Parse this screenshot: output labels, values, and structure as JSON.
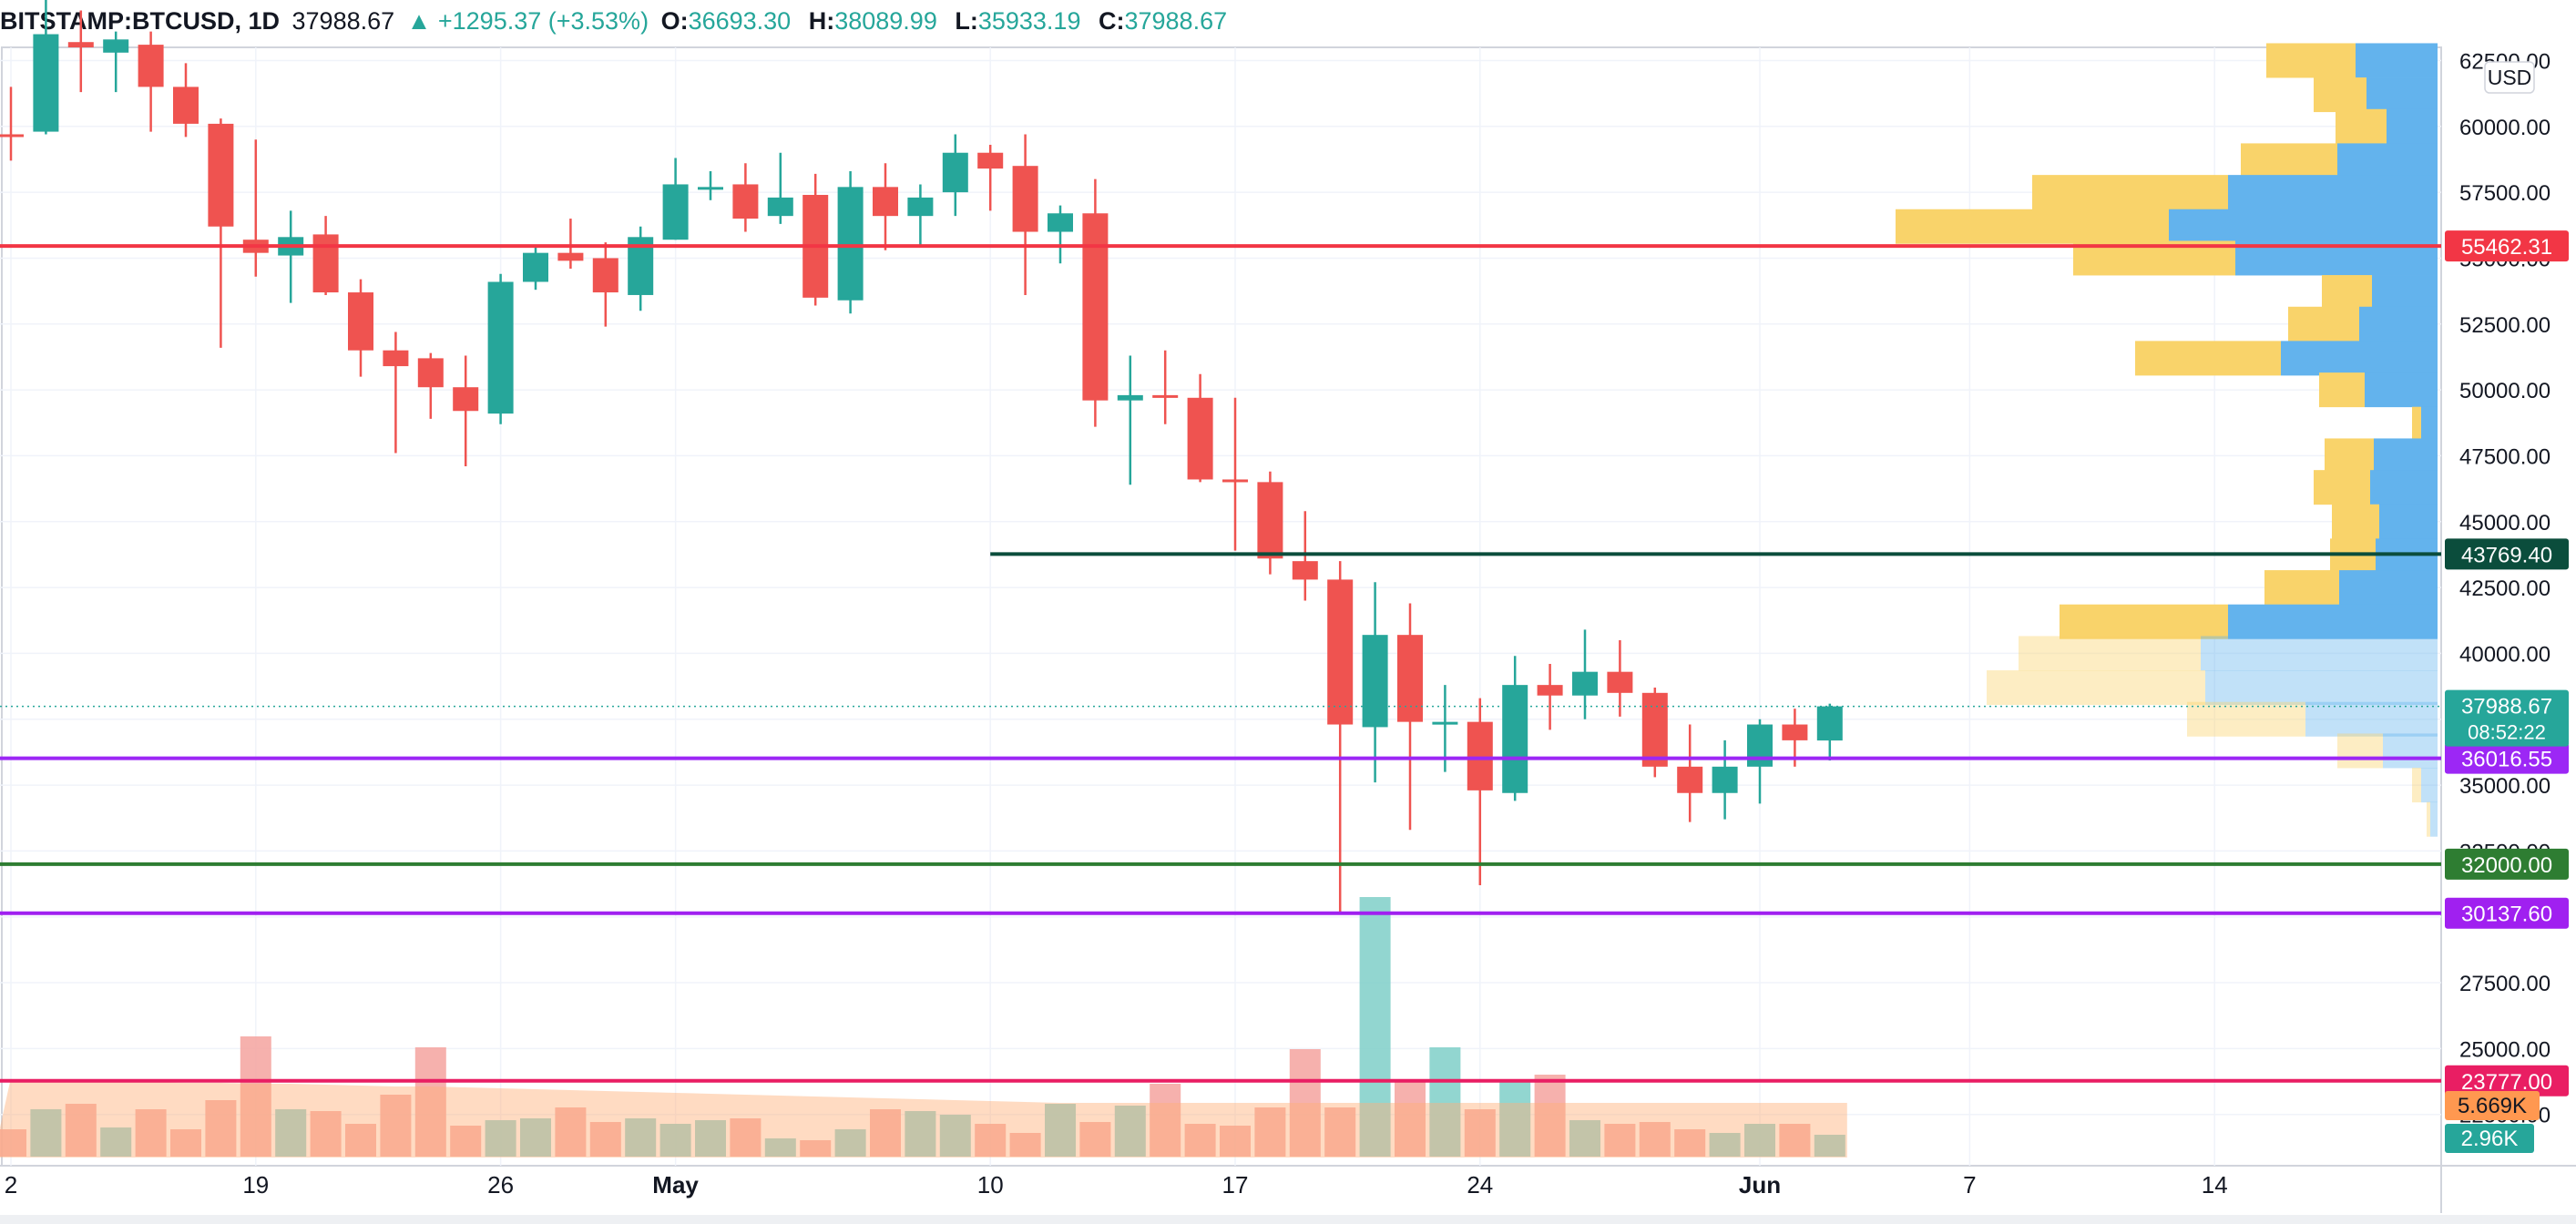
{
  "header": {
    "symbol": "BITSTAMP:BTCUSD, 1D",
    "last": "37988.67",
    "change": "▲ +1295.37 (+3.53%)",
    "o_label": "O:",
    "o_value": "36693.30",
    "h_label": "H:",
    "h_value": "38089.99",
    "l_label": "L:",
    "l_value": "35933.19",
    "c_label": "C:",
    "c_value": "37988.67"
  },
  "currency_label": "USD",
  "colors": {
    "up": "#26a69a",
    "down": "#ef5350",
    "vol_up": "#7fcfc8",
    "vol_down": "#f5a39f",
    "vp_up": "#63b3ed",
    "vp_down": "#f9d36a",
    "grid": "#f0f3fa",
    "text": "#131722"
  },
  "chart_data": {
    "type": "candlestick",
    "symbol": "BITSTAMP:BTCUSD",
    "interval": "1D",
    "ylim": [
      20900,
      63000
    ],
    "price_ticks": [
      "62500.00",
      "60000.00",
      "57500.00",
      "55000.00",
      "52500.00",
      "50000.00",
      "47500.00",
      "45000.00",
      "42500.00",
      "40000.00",
      "37500.00",
      "35000.00",
      "32500.00",
      "30000.00",
      "27500.00",
      "25000.00",
      "22500.00"
    ],
    "x_ticks": [
      {
        "label": "2",
        "day": 0
      },
      {
        "label": "19",
        "day": 7
      },
      {
        "label": "26",
        "day": 14
      },
      {
        "label": "May",
        "day": 19
      },
      {
        "label": "10",
        "day": 28
      },
      {
        "label": "17",
        "day": 35
      },
      {
        "label": "24",
        "day": 42
      },
      {
        "label": "Jun",
        "day": 50
      },
      {
        "label": "7",
        "day": 56
      },
      {
        "label": "14",
        "day": 63
      }
    ],
    "candles": [
      [
        0,
        59700,
        59600,
        61500,
        58700
      ],
      [
        1,
        59800,
        63500,
        64900,
        59700
      ],
      [
        2,
        63200,
        63000,
        64400,
        61300
      ],
      [
        3,
        62800,
        63300,
        63600,
        61300
      ],
      [
        4,
        63100,
        61500,
        63600,
        59800
      ],
      [
        5,
        61500,
        60100,
        62400,
        59600
      ],
      [
        6,
        60100,
        56200,
        60300,
        51600
      ],
      [
        7,
        55700,
        55200,
        59500,
        54300
      ],
      [
        8,
        55100,
        55800,
        56800,
        53300
      ],
      [
        9,
        55900,
        53700,
        56600,
        53600
      ],
      [
        10,
        53700,
        51500,
        54200,
        50500
      ],
      [
        11,
        51500,
        50900,
        52200,
        47600
      ],
      [
        12,
        51200,
        50100,
        51400,
        48900
      ],
      [
        13,
        50100,
        49200,
        51300,
        47100
      ],
      [
        14,
        49100,
        54100,
        54400,
        48700
      ],
      [
        15,
        54100,
        55200,
        55500,
        53800
      ],
      [
        16,
        55200,
        54900,
        56500,
        54600
      ],
      [
        17,
        55000,
        53700,
        55600,
        52400
      ],
      [
        18,
        53600,
        55800,
        56200,
        53000
      ],
      [
        19,
        55700,
        57800,
        58800,
        55700
      ],
      [
        20,
        57700,
        57700,
        58300,
        57200
      ],
      [
        21,
        57800,
        56500,
        58600,
        56000
      ],
      [
        22,
        56600,
        57300,
        59000,
        56300
      ],
      [
        23,
        57400,
        53500,
        58200,
        53200
      ],
      [
        24,
        53400,
        57700,
        58300,
        52900
      ],
      [
        25,
        57700,
        56600,
        58600,
        55300
      ],
      [
        26,
        56600,
        57300,
        57800,
        55400
      ],
      [
        27,
        57500,
        59000,
        59700,
        56600
      ],
      [
        28,
        59000,
        58400,
        59300,
        56800
      ],
      [
        29,
        58500,
        56000,
        59700,
        53600
      ],
      [
        30,
        56000,
        56700,
        57000,
        54800
      ],
      [
        31,
        56700,
        49600,
        58000,
        48600
      ],
      [
        32,
        49600,
        49800,
        51300,
        46400
      ],
      [
        33,
        49800,
        49700,
        51500,
        48700
      ],
      [
        34,
        49700,
        46600,
        50600,
        46500
      ],
      [
        35,
        46600,
        46500,
        49700,
        43900
      ],
      [
        36,
        46500,
        43600,
        46900,
        43000
      ],
      [
        37,
        43500,
        42800,
        45400,
        42000
      ],
      [
        38,
        42800,
        37300,
        43500,
        30100
      ],
      [
        39,
        37200,
        40700,
        42700,
        35100
      ],
      [
        40,
        40700,
        37400,
        41900,
        33300
      ],
      [
        41,
        37400,
        37400,
        38800,
        35500
      ],
      [
        42,
        37400,
        34800,
        38300,
        31200
      ],
      [
        43,
        34700,
        38800,
        39900,
        34400
      ],
      [
        44,
        38800,
        38400,
        39600,
        37100
      ],
      [
        45,
        38400,
        39300,
        40900,
        37500
      ],
      [
        46,
        39300,
        38500,
        40500,
        37600
      ],
      [
        47,
        38500,
        35700,
        38700,
        35300
      ],
      [
        48,
        35700,
        34700,
        37300,
        33600
      ],
      [
        49,
        34700,
        35700,
        36700,
        33700
      ],
      [
        50,
        35700,
        37300,
        37500,
        34300
      ],
      [
        51,
        37300,
        36700,
        37900,
        35700
      ],
      [
        52,
        36693.3,
        37988.67,
        38089.99,
        35933.19
      ]
    ],
    "volumes": [
      30,
      52,
      58,
      32,
      52,
      30,
      62,
      132,
      52,
      50,
      36,
      68,
      120,
      34,
      40,
      42,
      54,
      38,
      42,
      36,
      40,
      42,
      20,
      18,
      30,
      52,
      50,
      46,
      36,
      26,
      58,
      38,
      56,
      80,
      36,
      34,
      54,
      118,
      54,
      285,
      84,
      120,
      52,
      82,
      90,
      40,
      36,
      38,
      30,
      26,
      36,
      36,
      24
    ],
    "volume_ma": [
      82,
      82,
      82,
      81,
      81,
      80,
      80,
      79,
      79,
      78,
      77,
      76,
      76,
      75,
      74,
      73,
      72,
      71,
      70,
      69,
      68,
      67,
      66,
      65,
      64,
      63,
      62,
      61,
      60,
      59,
      58,
      58,
      58,
      58,
      58,
      58,
      58,
      58,
      58,
      58,
      58,
      58,
      58,
      58,
      58,
      58,
      58,
      58,
      58,
      58,
      58,
      58,
      58
    ],
    "volume_profile": [
      {
        "price": 62500,
        "up": 98,
        "down": 90
      },
      {
        "price": 61200,
        "up": 58,
        "down": 78
      },
      {
        "price": 60000,
        "up": 56,
        "down": 56
      },
      {
        "price": 58700,
        "up": 106,
        "down": 110
      },
      {
        "price": 57500,
        "up": 215,
        "down": 230
      },
      {
        "price": 56200,
        "up": 300,
        "down": 295
      },
      {
        "price": 55000,
        "up": 178,
        "down": 222
      },
      {
        "price": 53700,
        "up": 55,
        "down": 72
      },
      {
        "price": 52500,
        "up": 78,
        "down": 86
      },
      {
        "price": 51200,
        "up": 160,
        "down": 172
      },
      {
        "price": 50000,
        "up": 50,
        "down": 80
      },
      {
        "price": 48700,
        "up": 10,
        "down": 18
      },
      {
        "price": 47500,
        "up": 54,
        "down": 70
      },
      {
        "price": 46300,
        "up": 62,
        "down": 74
      },
      {
        "price": 45000,
        "up": 52,
        "down": 64
      },
      {
        "price": 43700,
        "up": 50,
        "down": 68
      },
      {
        "price": 42500,
        "up": 82,
        "down": 108
      },
      {
        "price": 41200,
        "up": 185,
        "down": 230
      },
      {
        "price": 40000,
        "up": 200,
        "down": 260
      },
      {
        "price": 38700,
        "up": 240,
        "down": 255
      },
      {
        "price": 37500,
        "up": 130,
        "down": 145
      },
      {
        "price": 36300,
        "up": 50,
        "down": 60
      },
      {
        "price": 35000,
        "up": 10,
        "down": 18
      },
      {
        "price": 33700,
        "up": 4,
        "down": 8
      }
    ],
    "vp_highlight": [
      40000,
      36300
    ],
    "horizontal_lines": [
      {
        "price": 55462.31,
        "label": "55462.31",
        "color": "#f23645",
        "x_start_day": -1
      },
      {
        "price": 43769.4,
        "label": "43769.40",
        "color": "#0b4d3c",
        "x_start_day": 28
      },
      {
        "price": 36016.55,
        "label": "36016.55",
        "color": "#9c27f5",
        "x_start_day": -1
      },
      {
        "price": 32000.0,
        "label": "32000.00",
        "color": "#2e7d32",
        "x_start_day": -1
      },
      {
        "price": 30137.6,
        "label": "30137.60",
        "color": "#a020f0",
        "x_start_day": -1
      },
      {
        "price": 23777.0,
        "label": "23777.00",
        "color": "#e91e63",
        "x_start_day": -1
      }
    ],
    "current_price": {
      "price": 37988.67,
      "label": "37988.67",
      "countdown": "08:52:22"
    },
    "volume_labels": {
      "ma": "5.669K",
      "last": "2.96K"
    }
  }
}
